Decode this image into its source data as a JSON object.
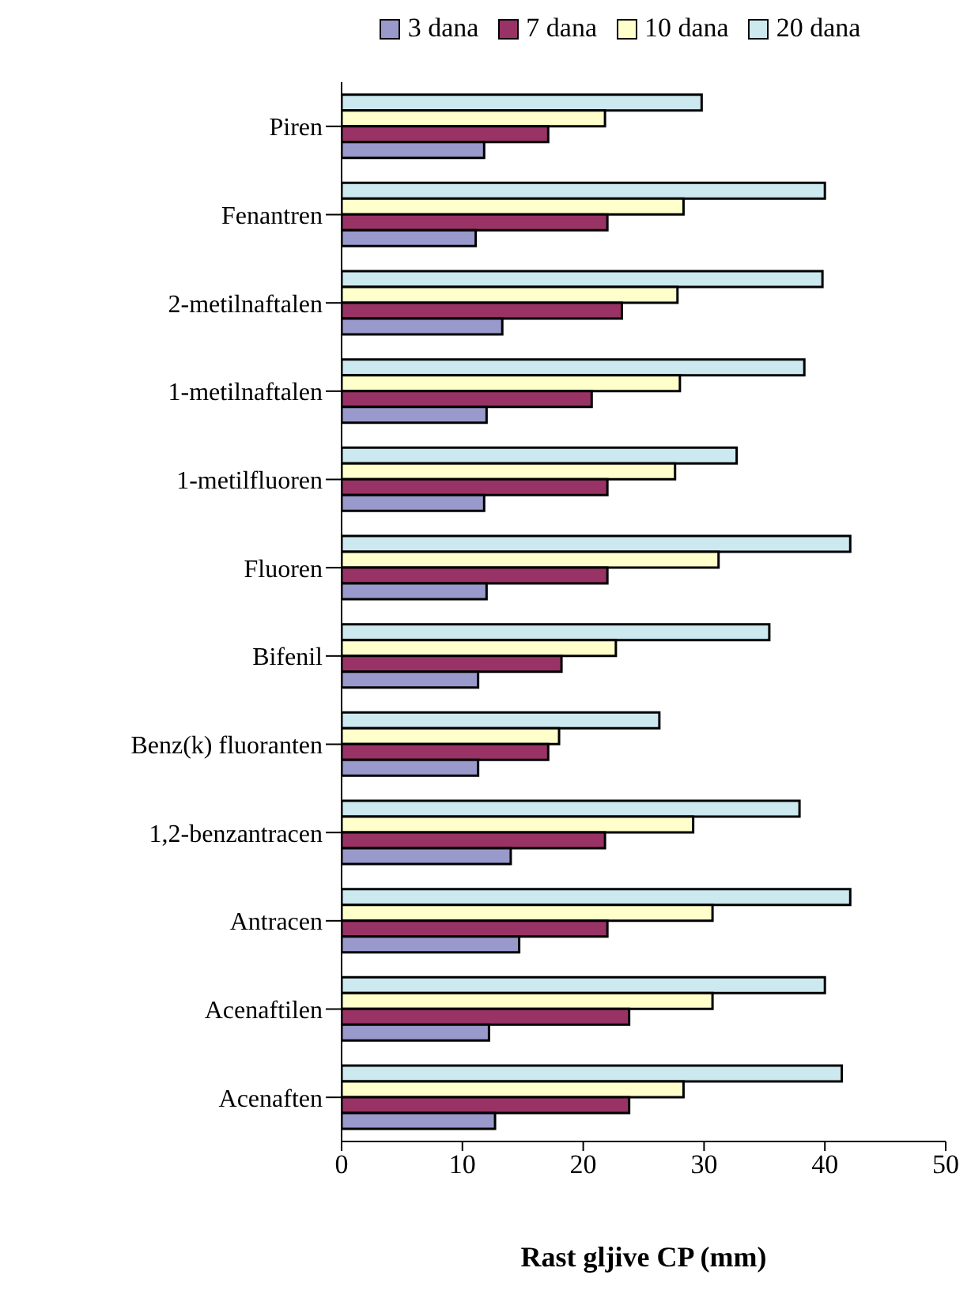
{
  "chart_data": {
    "type": "bar",
    "orientation": "horizontal",
    "xlabel": "Rast gljive CP (mm)",
    "categories": [
      "Piren",
      "Fenantren",
      "2-metilnaftalen",
      "1-metilnaftalen",
      "1-metilfluoren",
      "Fluoren",
      "Bifenil",
      "Benz(k) fluoranten",
      "1,2-benzantracen",
      "Antracen",
      "Acenaftilen",
      "Acenaften"
    ],
    "series": [
      {
        "name": "3 dana",
        "color": "#9999cc",
        "values": [
          11.8,
          11.1,
          13.3,
          12.0,
          11.8,
          12.0,
          11.3,
          11.3,
          14.0,
          14.7,
          12.2,
          12.7
        ]
      },
      {
        "name": "7 dana",
        "color": "#993366",
        "values": [
          17.1,
          22.0,
          23.2,
          20.7,
          22.0,
          22.0,
          18.2,
          17.1,
          21.8,
          22.0,
          23.8,
          23.8
        ]
      },
      {
        "name": "10 dana",
        "color": "#ffffcc",
        "values": [
          21.8,
          28.3,
          27.8,
          28.0,
          27.6,
          31.2,
          22.7,
          18.0,
          29.1,
          30.7,
          30.7,
          28.3
        ]
      },
      {
        "name": "20 dana",
        "color": "#cde9f0",
        "values": [
          29.8,
          40.0,
          39.8,
          38.3,
          32.7,
          42.1,
          35.4,
          26.3,
          37.9,
          42.1,
          40.0,
          41.4
        ]
      }
    ],
    "xlim": [
      0,
      50
    ],
    "xticks": [
      0,
      10,
      20,
      30,
      40,
      50
    ],
    "grid": false,
    "legend": "top"
  }
}
